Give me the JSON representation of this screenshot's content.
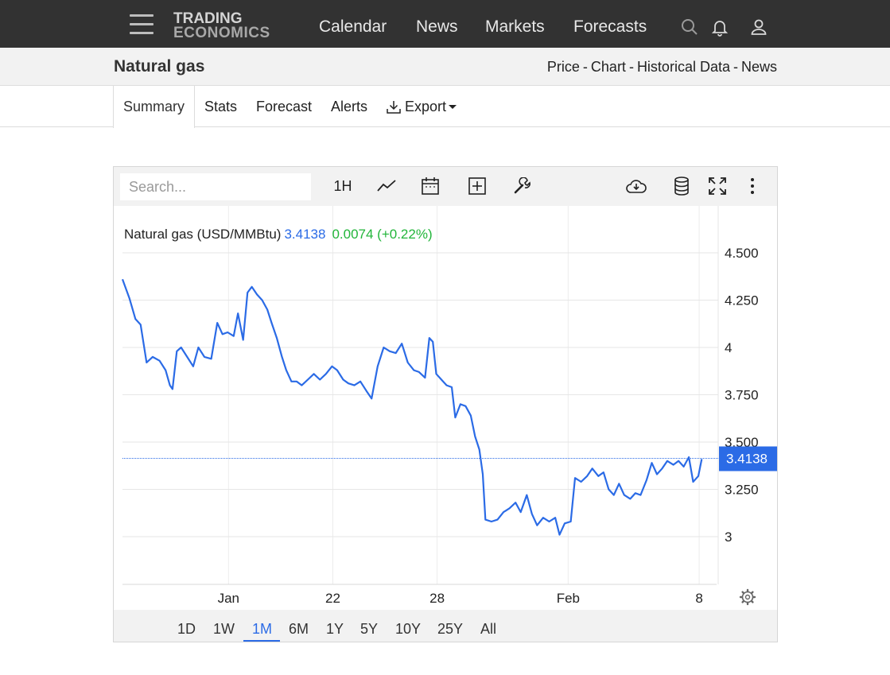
{
  "nav": {
    "logo_line1": "TRADING",
    "logo_line2": "ECONOMICS",
    "links": [
      "Calendar",
      "News",
      "Markets",
      "Forecasts"
    ]
  },
  "subheader": {
    "title": "Natural gas",
    "crumbs": [
      "Price",
      "Chart",
      "Historical Data",
      "News"
    ],
    "separator": "-"
  },
  "tabs": {
    "items": [
      "Summary",
      "Stats",
      "Forecast",
      "Alerts",
      "Export"
    ],
    "active": "Summary"
  },
  "toolbar": {
    "search_placeholder": "Search...",
    "interval_label": "1H",
    "icons": [
      "line-chart-icon",
      "calendar-icon",
      "add-indicator-icon",
      "wrench-icon",
      "cloud-download-icon",
      "database-icon",
      "fullscreen-icon",
      "more-vertical-icon"
    ]
  },
  "legend": {
    "name": "Natural gas (USD/MMBtu)",
    "price": "3.4138",
    "change": "0.0074 (+0.22%)"
  },
  "range": {
    "buttons": [
      "1D",
      "1W",
      "1M",
      "6M",
      "1Y",
      "5Y",
      "10Y",
      "25Y",
      "All"
    ],
    "active": "1M"
  },
  "colors": {
    "line": "#2b6be6",
    "up": "#22b53a",
    "navbar": "#323232"
  },
  "chart_data": {
    "type": "line",
    "title": "",
    "series": [
      {
        "name": "Natural gas (USD/MMBtu)",
        "points": [
          [
            0,
            4.36
          ],
          [
            0.8,
            4.26
          ],
          [
            1.5,
            4.15
          ],
          [
            2.1,
            4.12
          ],
          [
            2.8,
            3.92
          ],
          [
            3.5,
            3.95
          ],
          [
            4.3,
            3.93
          ],
          [
            5.0,
            3.88
          ],
          [
            5.5,
            3.8
          ],
          [
            5.8,
            3.78
          ],
          [
            6.3,
            3.98
          ],
          [
            6.8,
            4.0
          ],
          [
            7.5,
            3.95
          ],
          [
            8.2,
            3.9
          ],
          [
            8.8,
            4.0
          ],
          [
            9.5,
            3.95
          ],
          [
            10.3,
            3.94
          ],
          [
            11.0,
            4.13
          ],
          [
            11.6,
            4.07
          ],
          [
            12.2,
            4.08
          ],
          [
            12.9,
            4.06
          ],
          [
            13.4,
            4.18
          ],
          [
            14.0,
            4.04
          ],
          [
            14.5,
            4.29
          ],
          [
            15.0,
            4.32
          ],
          [
            15.6,
            4.28
          ],
          [
            16.2,
            4.25
          ],
          [
            16.8,
            4.2
          ],
          [
            17.3,
            4.13
          ],
          [
            17.9,
            4.05
          ],
          [
            18.5,
            3.95
          ],
          [
            19.0,
            3.88
          ],
          [
            19.6,
            3.82
          ],
          [
            20.2,
            3.82
          ],
          [
            20.8,
            3.8
          ],
          [
            21.5,
            3.83
          ],
          [
            22.2,
            3.86
          ],
          [
            22.9,
            3.83
          ],
          [
            23.6,
            3.86
          ],
          [
            24.3,
            3.9
          ],
          [
            24.9,
            3.88
          ],
          [
            25.6,
            3.83
          ],
          [
            26.2,
            3.81
          ],
          [
            26.9,
            3.8
          ],
          [
            27.6,
            3.82
          ],
          [
            28.3,
            3.77
          ],
          [
            28.9,
            3.73
          ],
          [
            29.6,
            3.9
          ],
          [
            30.3,
            4.0
          ],
          [
            31.0,
            3.98
          ],
          [
            31.7,
            3.97
          ],
          [
            32.4,
            4.02
          ],
          [
            33.1,
            3.92
          ],
          [
            33.8,
            3.88
          ],
          [
            34.4,
            3.87
          ],
          [
            35.1,
            3.84
          ],
          [
            35.6,
            4.05
          ],
          [
            36.0,
            4.03
          ],
          [
            36.4,
            3.86
          ],
          [
            37.0,
            3.83
          ],
          [
            37.6,
            3.8
          ],
          [
            38.2,
            3.79
          ],
          [
            38.6,
            3.63
          ],
          [
            39.2,
            3.7
          ],
          [
            39.8,
            3.69
          ],
          [
            40.4,
            3.64
          ],
          [
            40.9,
            3.53
          ],
          [
            41.4,
            3.46
          ],
          [
            41.8,
            3.33
          ],
          [
            42.1,
            3.09
          ],
          [
            42.8,
            3.08
          ],
          [
            43.5,
            3.09
          ],
          [
            44.2,
            3.13
          ],
          [
            44.9,
            3.15
          ],
          [
            45.6,
            3.18
          ],
          [
            46.2,
            3.13
          ],
          [
            46.9,
            3.22
          ],
          [
            47.5,
            3.12
          ],
          [
            48.1,
            3.06
          ],
          [
            48.8,
            3.1
          ],
          [
            49.5,
            3.08
          ],
          [
            50.2,
            3.1
          ],
          [
            50.7,
            3.01
          ],
          [
            51.3,
            3.07
          ],
          [
            52.0,
            3.08
          ],
          [
            52.5,
            3.31
          ],
          [
            53.2,
            3.29
          ],
          [
            53.9,
            3.32
          ],
          [
            54.5,
            3.36
          ],
          [
            55.2,
            3.32
          ],
          [
            55.8,
            3.34
          ],
          [
            56.4,
            3.25
          ],
          [
            57.0,
            3.22
          ],
          [
            57.6,
            3.28
          ],
          [
            58.2,
            3.22
          ],
          [
            58.9,
            3.2
          ],
          [
            59.5,
            3.23
          ],
          [
            60.1,
            3.22
          ],
          [
            60.8,
            3.3
          ],
          [
            61.4,
            3.39
          ],
          [
            62.0,
            3.33
          ],
          [
            62.6,
            3.36
          ],
          [
            63.2,
            3.4
          ],
          [
            63.9,
            3.38
          ],
          [
            64.5,
            3.4
          ],
          [
            65.1,
            3.37
          ],
          [
            65.7,
            3.42
          ],
          [
            66.2,
            3.29
          ],
          [
            66.8,
            3.32
          ],
          [
            67.2,
            3.41
          ]
        ]
      }
    ],
    "x_tick_labels": [
      "Jan",
      "22",
      "28",
      "Feb",
      "8"
    ],
    "x_tick_positions": [
      12.3,
      24.4,
      36.5,
      51.7,
      66.9
    ],
    "x_range": [
      0,
      68.0
    ],
    "y_ticks": [
      3,
      3.25,
      3.5,
      3.75,
      4,
      4.25,
      4.5
    ],
    "y_tick_labels": [
      "3",
      "3.250",
      "3.500",
      "3.750",
      "4",
      "4.250",
      "4.500"
    ],
    "ylim": [
      2.75,
      4.6
    ],
    "last_value": 3.4138,
    "last_value_label": "3.4138",
    "grid": true
  }
}
